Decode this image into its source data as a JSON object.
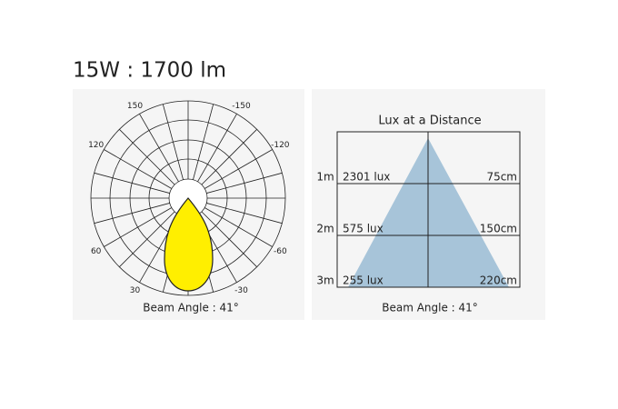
{
  "header": {
    "title": "15W : 1700 lm"
  },
  "polar_panel": {
    "angle_labels": [
      -150,
      150,
      -120,
      120,
      -60,
      60,
      -30,
      30
    ],
    "caption": "Beam Angle : 41°"
  },
  "lux_panel": {
    "title": "Lux at a Distance",
    "rows": [
      {
        "distance": "1m",
        "lux": "2301 lux",
        "diameter": "75cm"
      },
      {
        "distance": "2m",
        "lux": "575 lux",
        "diameter": "150cm"
      },
      {
        "distance": "3m",
        "lux": "255 lux",
        "diameter": "220cm"
      }
    ],
    "caption": "Beam Angle : 41°"
  }
}
